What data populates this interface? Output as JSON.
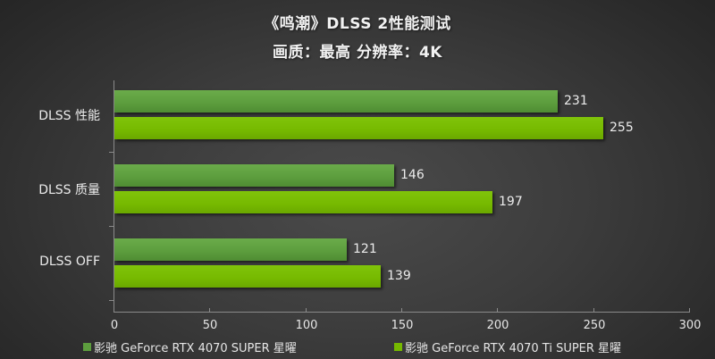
{
  "chart_data": {
    "type": "bar",
    "orientation": "horizontal",
    "title": "《鸣潮》DLSS  2性能测试",
    "subtitle": "画质：最高 分辨率：4K",
    "categories": [
      "DLSS 性能",
      "DLSS 质量",
      "DLSS OFF"
    ],
    "series": [
      {
        "name": "影驰 GeForce RTX 4070 SUPER 星曜",
        "color": "#5d9e3e",
        "values": [
          231,
          146,
          121
        ]
      },
      {
        "name": "影驰 GeForce RTX 4070 Ti SUPER 星曜",
        "color": "#76b900",
        "values": [
          255,
          197,
          139
        ]
      }
    ],
    "xlabel": "",
    "ylabel": "",
    "xlim": [
      0,
      300
    ],
    "xticks": [
      "0",
      "50",
      "100",
      "150",
      "200",
      "250",
      "300"
    ],
    "grid": false,
    "legend_position": "bottom"
  },
  "header": {
    "title": "《鸣潮》DLSS  2性能测试",
    "subtitle": "画质：最高 分辨率：4K"
  },
  "legend": {
    "items": [
      {
        "label": "影驰 GeForce RTX 4070 SUPER 星曜",
        "color": "#5d9e3e"
      },
      {
        "label": "影驰 GeForce RTX 4070 Ti SUPER 星曜",
        "color": "#76b900"
      }
    ]
  }
}
